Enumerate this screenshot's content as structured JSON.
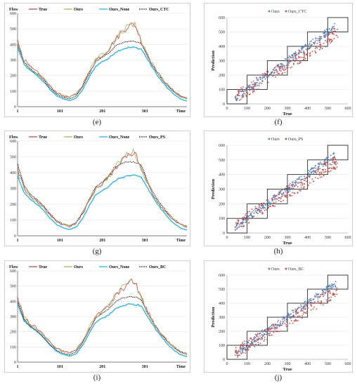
{
  "chart_data": [
    {
      "type": "line",
      "caption": "(e)",
      "ylabel": "Flow",
      "xlabel": "Time",
      "x_ticks": [
        "1",
        "101",
        "201",
        "301"
      ],
      "y_ticks": [
        "0",
        "100",
        "200",
        "300",
        "400",
        "500",
        "600"
      ],
      "ylim": [
        0,
        600
      ],
      "xlim": [
        1,
        400
      ],
      "legend": [
        "True",
        "Ours",
        "Ours_None",
        "Ours_CTC"
      ],
      "series": [
        {
          "name": "True",
          "color": "#c0504d",
          "style": "solid",
          "values": [
            420,
            300,
            250,
            220,
            180,
            130,
            90,
            70,
            60,
            80,
            140,
            220,
            300,
            330,
            370,
            430,
            480,
            520,
            530,
            420,
            330,
            250,
            190,
            140,
            100,
            70,
            55
          ]
        },
        {
          "name": "Ours",
          "color": "#9bbb59",
          "style": "solid",
          "values": [
            410,
            295,
            248,
            215,
            178,
            128,
            92,
            72,
            62,
            82,
            142,
            225,
            305,
            335,
            375,
            435,
            485,
            525,
            530,
            425,
            330,
            250,
            190,
            140,
            100,
            72,
            55
          ]
        },
        {
          "name": "Ours_None",
          "color": "#31b4e8",
          "style": "solid",
          "values": [
            380,
            270,
            230,
            200,
            160,
            110,
            70,
            50,
            40,
            55,
            110,
            190,
            260,
            290,
            310,
            350,
            370,
            380,
            380,
            370,
            300,
            230,
            170,
            120,
            80,
            50,
            35
          ]
        },
        {
          "name": "Ours_CTC",
          "color": "#000000",
          "style": "dotted",
          "values": [
            400,
            285,
            240,
            210,
            170,
            120,
            80,
            60,
            50,
            70,
            130,
            210,
            290,
            320,
            345,
            390,
            410,
            420,
            420,
            405,
            320,
            245,
            185,
            135,
            95,
            65,
            50
          ]
        }
      ]
    },
    {
      "type": "scatter",
      "caption": "(f)",
      "ylabel": "Prediction",
      "xlabel": "True",
      "x_ticks": [
        "0",
        "100",
        "200",
        "300",
        "400",
        "500",
        "600"
      ],
      "y_ticks": [
        "0",
        "100",
        "200",
        "300",
        "400",
        "500",
        "600"
      ],
      "xlim": [
        0,
        600
      ],
      "ylim": [
        0,
        600
      ],
      "legend": [
        "Ours",
        "Ours_CTC"
      ],
      "series": [
        {
          "name": "Ours",
          "color": "#4f81bd"
        },
        {
          "name": "Ours_CTC",
          "color": "#c0504d"
        }
      ]
    },
    {
      "type": "line",
      "caption": "(g)",
      "ylabel": "Flow",
      "xlabel": "Time",
      "x_ticks": [
        "1",
        "101",
        "201",
        "301"
      ],
      "y_ticks": [
        "0",
        "100",
        "200",
        "300",
        "400",
        "500",
        "600"
      ],
      "ylim": [
        0,
        600
      ],
      "xlim": [
        1,
        400
      ],
      "legend": [
        "True",
        "Ours",
        "Ours_None",
        "Ours_PS"
      ],
      "series": [
        {
          "name": "True",
          "color": "#c0504d",
          "style": "solid",
          "values": [
            420,
            300,
            250,
            220,
            180,
            130,
            90,
            70,
            60,
            80,
            140,
            220,
            300,
            330,
            370,
            430,
            480,
            520,
            530,
            420,
            330,
            250,
            190,
            140,
            100,
            70,
            55
          ]
        },
        {
          "name": "Ours",
          "color": "#9bbb59",
          "style": "solid",
          "values": [
            410,
            295,
            248,
            215,
            178,
            128,
            92,
            72,
            62,
            82,
            142,
            225,
            305,
            335,
            375,
            435,
            485,
            525,
            530,
            425,
            330,
            250,
            190,
            140,
            100,
            72,
            55
          ]
        },
        {
          "name": "Ours_None",
          "color": "#31b4e8",
          "style": "solid",
          "values": [
            380,
            270,
            230,
            200,
            160,
            110,
            70,
            50,
            40,
            55,
            110,
            190,
            260,
            290,
            310,
            350,
            370,
            380,
            380,
            370,
            300,
            230,
            170,
            120,
            80,
            50,
            35
          ]
        },
        {
          "name": "Ours_PS",
          "color": "#000000",
          "style": "dotted",
          "values": [
            455,
            320,
            260,
            230,
            190,
            140,
            95,
            75,
            65,
            85,
            150,
            230,
            310,
            340,
            380,
            430,
            460,
            470,
            465,
            450,
            340,
            260,
            200,
            150,
            105,
            75,
            60
          ]
        }
      ]
    },
    {
      "type": "scatter",
      "caption": "(h)",
      "ylabel": "Prediction",
      "xlabel": "True",
      "x_ticks": [
        "0",
        "100",
        "200",
        "300",
        "400",
        "500",
        "600"
      ],
      "y_ticks": [
        "0",
        "100",
        "200",
        "300",
        "400",
        "500",
        "600"
      ],
      "xlim": [
        0,
        600
      ],
      "ylim": [
        0,
        600
      ],
      "legend": [
        "Ours",
        "Ours_PS"
      ],
      "series": [
        {
          "name": "Ours",
          "color": "#4f81bd"
        },
        {
          "name": "Ours_PS",
          "color": "#c0504d"
        }
      ]
    },
    {
      "type": "line",
      "caption": "(i)",
      "ylabel": "Flow",
      "xlabel": "Time",
      "x_ticks": [
        "1",
        "101",
        "201",
        "301"
      ],
      "y_ticks": [
        "0",
        "100",
        "200",
        "300",
        "400",
        "500",
        "600"
      ],
      "ylim": [
        0,
        600
      ],
      "xlim": [
        1,
        400
      ],
      "legend": [
        "True",
        "Ours",
        "Ours_None",
        "Ours_BC"
      ],
      "series": [
        {
          "name": "True",
          "color": "#c0504d",
          "style": "solid",
          "values": [
            420,
            300,
            250,
            220,
            180,
            130,
            90,
            70,
            60,
            80,
            140,
            220,
            300,
            330,
            370,
            430,
            480,
            520,
            530,
            420,
            330,
            250,
            190,
            140,
            100,
            70,
            55
          ]
        },
        {
          "name": "Ours",
          "color": "#9bbb59",
          "style": "solid",
          "values": [
            410,
            295,
            248,
            215,
            178,
            128,
            92,
            72,
            62,
            82,
            142,
            225,
            305,
            335,
            375,
            435,
            485,
            525,
            530,
            425,
            330,
            250,
            190,
            140,
            100,
            72,
            55
          ]
        },
        {
          "name": "Ours_None",
          "color": "#31b4e8",
          "style": "solid",
          "values": [
            380,
            270,
            230,
            200,
            160,
            110,
            70,
            50,
            40,
            55,
            110,
            190,
            260,
            290,
            310,
            350,
            370,
            380,
            380,
            370,
            300,
            230,
            170,
            120,
            80,
            50,
            35
          ]
        },
        {
          "name": "Ours_BC",
          "color": "#000000",
          "style": "dotted",
          "values": [
            400,
            280,
            235,
            205,
            165,
            115,
            78,
            58,
            48,
            68,
            128,
            210,
            290,
            320,
            350,
            395,
            420,
            430,
            430,
            410,
            320,
            245,
            185,
            135,
            95,
            65,
            50
          ]
        }
      ]
    },
    {
      "type": "scatter",
      "caption": "(j)",
      "ylabel": "Prediction",
      "xlabel": "True",
      "x_ticks": [
        "0",
        "100",
        "200",
        "300",
        "400",
        "500",
        "600"
      ],
      "y_ticks": [
        "0",
        "100",
        "200",
        "300",
        "400",
        "500",
        "600"
      ],
      "xlim": [
        0,
        600
      ],
      "ylim": [
        0,
        600
      ],
      "legend": [
        "Ours",
        "Ours_BC"
      ],
      "series": [
        {
          "name": "Ours",
          "color": "#4f81bd"
        },
        {
          "name": "Ours_BC",
          "color": "#c0504d"
        }
      ]
    }
  ]
}
